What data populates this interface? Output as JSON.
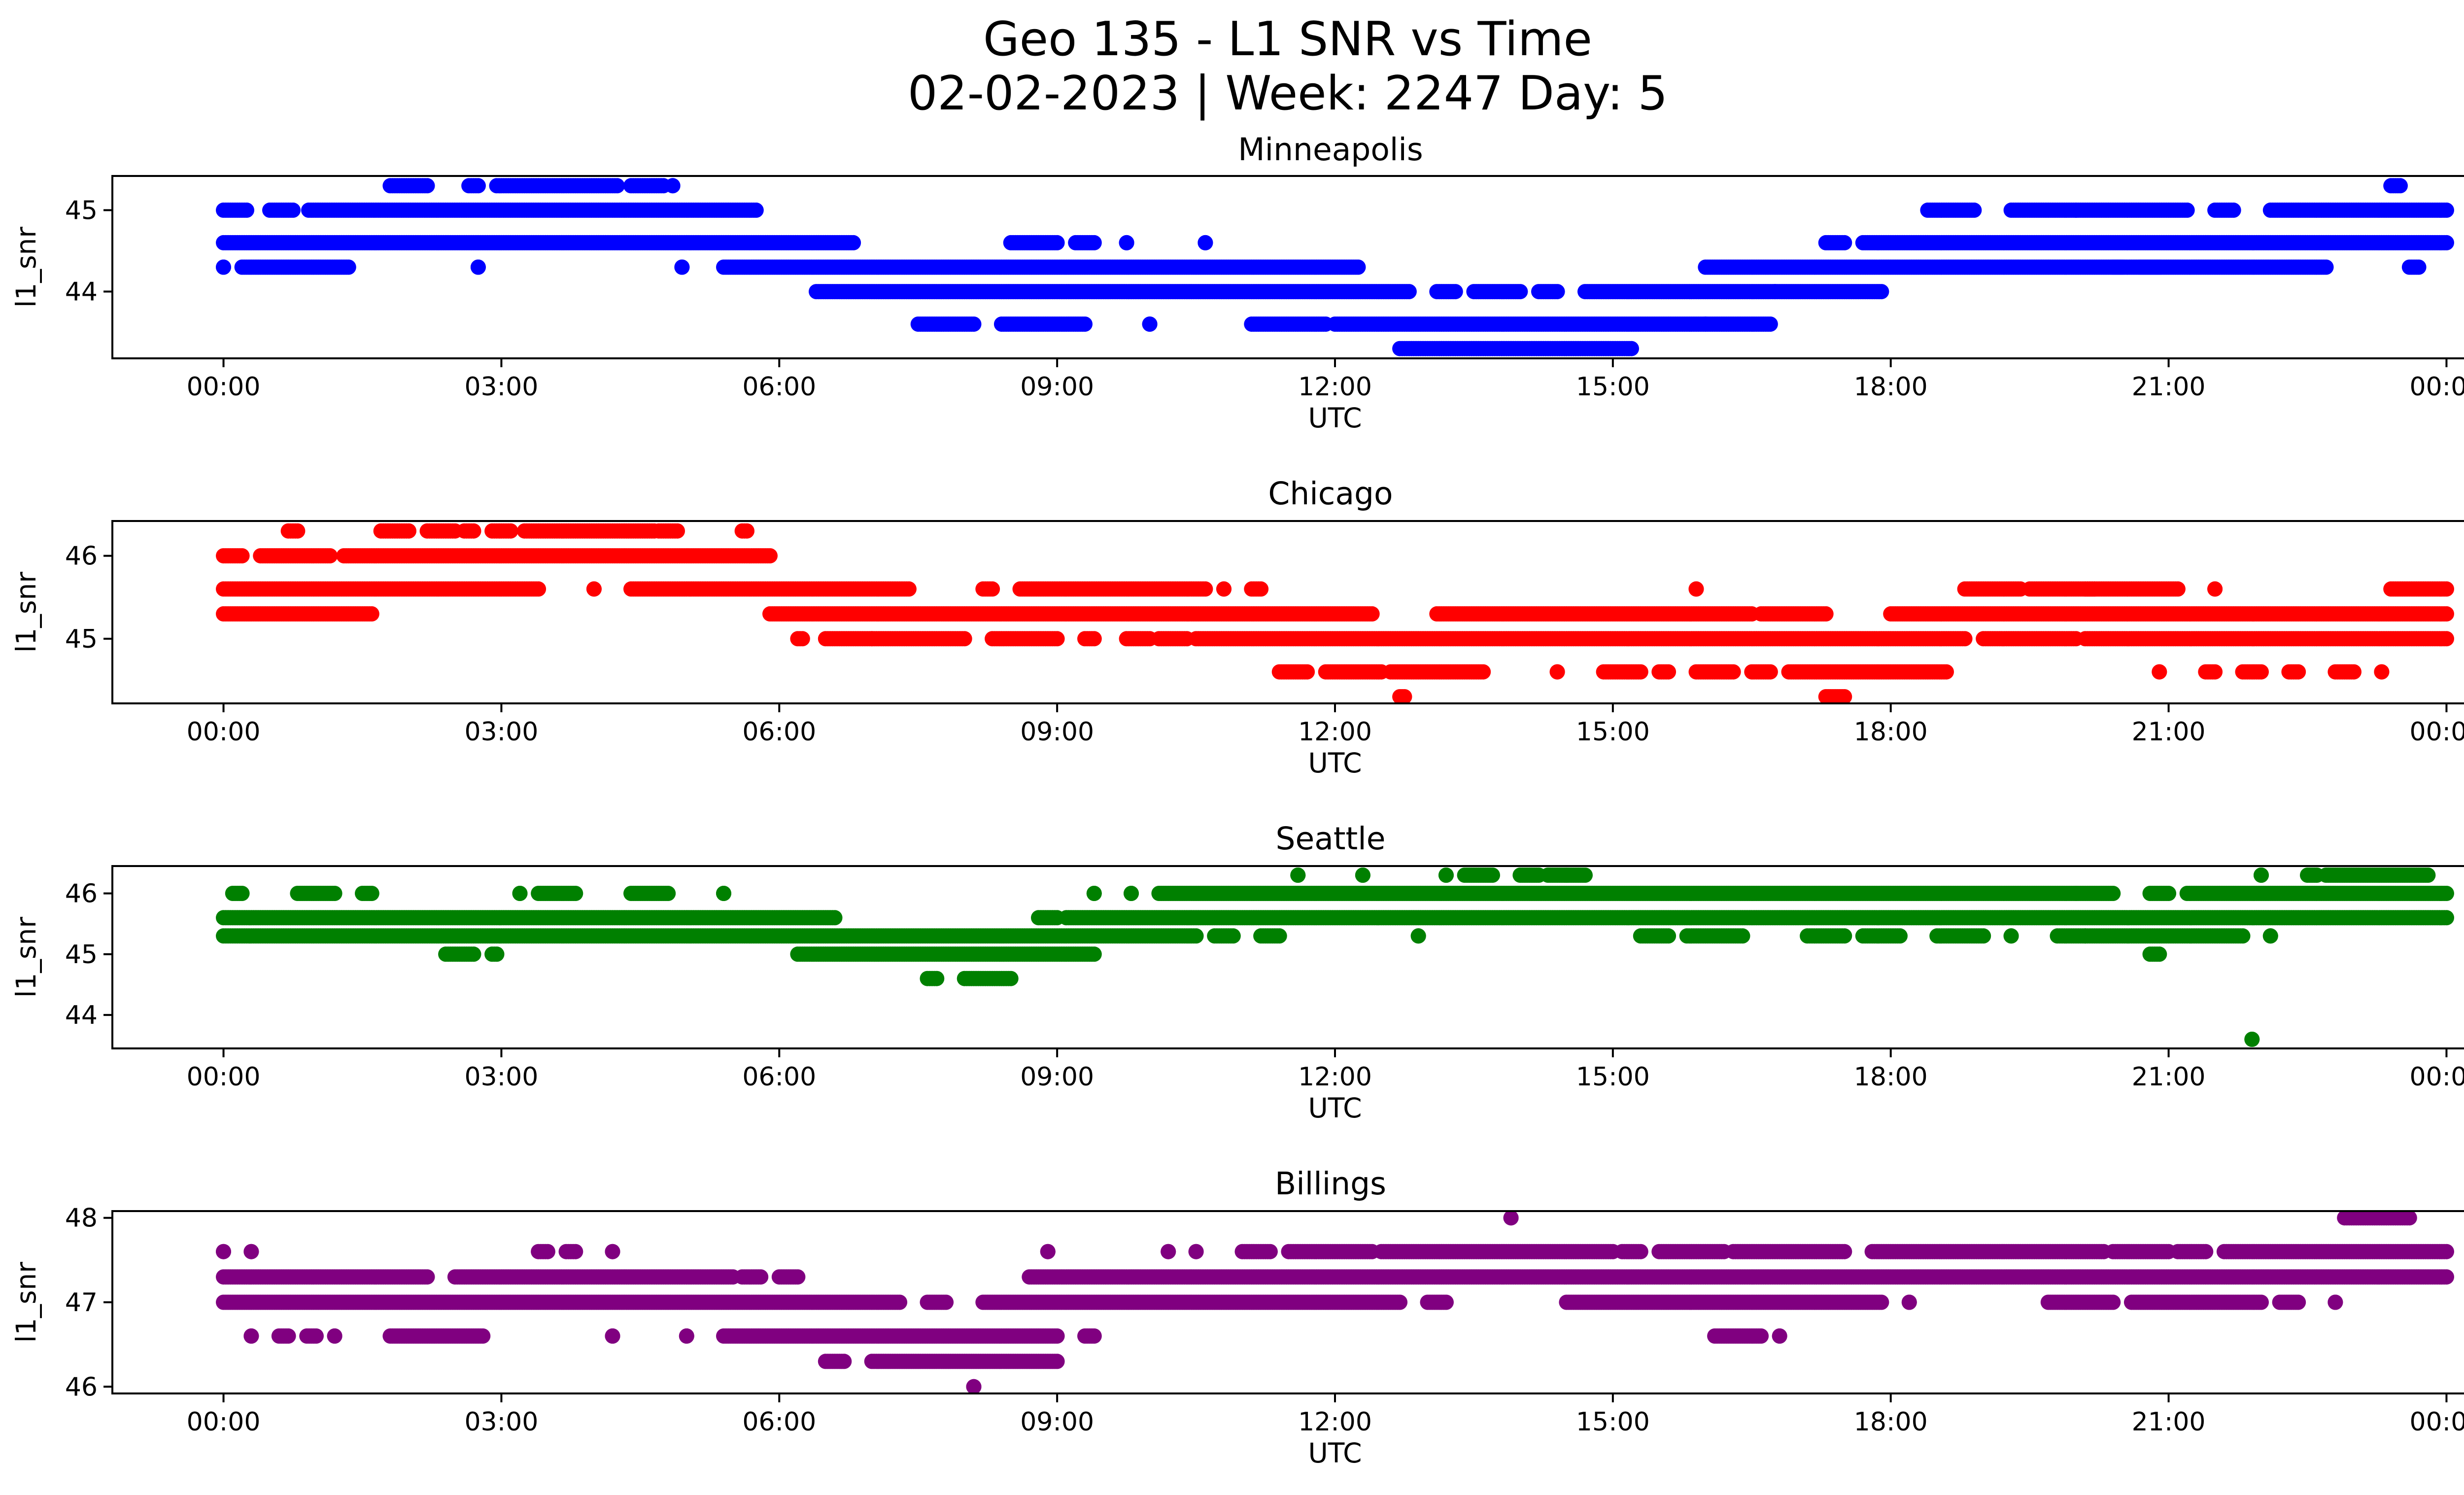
{
  "title_line1": "Geo 135 - L1 SNR vs Time",
  "title_line2": "02-02-2023 | Week: 2247 Day: 5",
  "x_tick_labels": [
    "00:00",
    "03:00",
    "06:00",
    "09:00",
    "12:00",
    "15:00",
    "18:00",
    "21:00",
    "00:00"
  ],
  "chart_data": [
    {
      "type": "scatter",
      "title": "Minneapolis",
      "xlabel": "UTC",
      "ylabel": "l1_snr",
      "color": "#0000ff",
      "xlim": [
        -1.2,
        25.2
      ],
      "ylim": [
        43.18,
        45.42
      ],
      "yticks": [
        44,
        45
      ],
      "bands": [
        {
          "y": 45.0,
          "segments": [
            [
              0.0,
              0.25
            ],
            [
              0.5,
              0.75
            ],
            [
              0.92,
              5.75
            ],
            [
              18.4,
              18.9
            ],
            [
              19.3,
              20.0
            ],
            [
              20.0,
              21.2
            ],
            [
              21.5,
              21.7
            ],
            [
              22.1,
              24.0
            ]
          ]
        },
        {
          "y": 44.6,
          "segments": [
            [
              0.0,
              6.8
            ],
            [
              8.5,
              9.0
            ],
            [
              9.2,
              9.4
            ],
            [
              9.75,
              9.75
            ],
            [
              10.6,
              10.6
            ],
            [
              17.3,
              17.5
            ],
            [
              17.7,
              24.0
            ]
          ]
        },
        {
          "y": 44.3,
          "segments": [
            [
              0.0,
              0.0
            ],
            [
              0.2,
              1.35
            ],
            [
              2.75,
              2.75
            ],
            [
              4.95,
              4.95
            ],
            [
              5.4,
              12.25
            ],
            [
              16.0,
              20.5
            ],
            [
              20.7,
              20.9
            ],
            [
              20.4,
              22.7
            ]
          ]
        },
        {
          "y": 44.0,
          "segments": [
            [
              6.4,
              12.8
            ],
            [
              13.1,
              13.3
            ],
            [
              13.5,
              14.0
            ],
            [
              14.2,
              14.4
            ],
            [
              14.7,
              16.75
            ],
            [
              16.75,
              17.9
            ]
          ]
        },
        {
          "y": 43.6,
          "segments": [
            [
              7.5,
              8.1
            ],
            [
              8.4,
              9.3
            ],
            [
              10.0,
              10.0
            ],
            [
              11.1,
              11.9
            ],
            [
              12.0,
              16.0
            ],
            [
              16.0,
              16.7
            ]
          ]
        },
        {
          "y": 43.3,
          "segments": [
            [
              12.7,
              15.2
            ]
          ]
        },
        {
          "y": 45.3,
          "segments": [
            [
              1.8,
              2.2
            ],
            [
              2.65,
              2.75
            ],
            [
              2.95,
              4.25
            ],
            [
              4.4,
              4.75
            ],
            [
              4.85,
              4.85
            ],
            [
              23.4,
              23.5
            ]
          ]
        },
        {
          "y": 44.3,
          "segments": [
            [
              23.6,
              23.7
            ]
          ]
        }
      ]
    },
    {
      "type": "scatter",
      "title": "Chicago",
      "xlabel": "UTC",
      "ylabel": "l1_snr",
      "color": "#ff0000",
      "xlim": [
        -1.2,
        25.2
      ],
      "ylim": [
        44.22,
        46.42
      ],
      "yticks": [
        45,
        46
      ],
      "bands": [
        {
          "y": 46.3,
          "segments": [
            [
              0.7,
              0.8
            ],
            [
              1.7,
              2.0
            ],
            [
              2.2,
              2.5
            ],
            [
              2.6,
              2.7
            ],
            [
              2.9,
              3.1
            ],
            [
              3.25,
              4.65
            ],
            [
              4.7,
              4.9
            ],
            [
              5.6,
              5.65
            ]
          ]
        },
        {
          "y": 46.0,
          "segments": [
            [
              0.0,
              0.2
            ],
            [
              0.4,
              1.15
            ],
            [
              1.3,
              5.9
            ]
          ]
        },
        {
          "y": 45.6,
          "segments": [
            [
              0.0,
              3.4
            ],
            [
              4.0,
              4.0
            ],
            [
              4.4,
              7.4
            ],
            [
              8.2,
              8.3
            ],
            [
              8.6,
              10.6
            ],
            [
              10.8,
              10.8
            ],
            [
              11.1,
              11.2
            ],
            [
              15.9,
              15.9
            ],
            [
              18.8,
              19.4
            ],
            [
              19.5,
              20.2
            ],
            [
              20.1,
              21.1
            ],
            [
              21.5,
              21.5
            ],
            [
              23.4,
              24.0
            ]
          ]
        },
        {
          "y": 45.3,
          "segments": [
            [
              0.0,
              1.6
            ],
            [
              5.9,
              12.4
            ],
            [
              13.1,
              16.5
            ],
            [
              16.6,
              17.3
            ],
            [
              18.0,
              24.0
            ]
          ]
        },
        {
          "y": 45.0,
          "segments": [
            [
              6.2,
              6.25
            ],
            [
              6.5,
              7.0
            ],
            [
              7.0,
              8.0
            ],
            [
              8.3,
              9.0
            ],
            [
              9.3,
              9.4
            ],
            [
              9.75,
              10.0
            ],
            [
              10.1,
              10.4
            ],
            [
              10.5,
              18.8
            ],
            [
              19.0,
              20.0
            ],
            [
              20.1,
              24.0
            ]
          ]
        },
        {
          "y": 44.6,
          "segments": [
            [
              11.4,
              11.7
            ],
            [
              11.9,
              12.5
            ],
            [
              12.6,
              13.6
            ],
            [
              14.4,
              14.4
            ],
            [
              14.9,
              15.3
            ],
            [
              15.5,
              15.6
            ],
            [
              15.9,
              16.3
            ],
            [
              16.5,
              16.7
            ],
            [
              16.9,
              18.6
            ],
            [
              20.9,
              20.9
            ],
            [
              21.4,
              21.5
            ],
            [
              21.8,
              22.0
            ],
            [
              22.3,
              22.4
            ],
            [
              22.8,
              23.0
            ],
            [
              23.3,
              23.3
            ]
          ]
        },
        {
          "y": 44.3,
          "segments": [
            [
              12.7,
              12.75
            ],
            [
              17.3,
              17.5
            ]
          ]
        }
      ]
    },
    {
      "type": "scatter",
      "title": "Seattle",
      "xlabel": "UTC",
      "ylabel": "l1_snr",
      "color": "#008000",
      "xlim": [
        -1.2,
        25.2
      ],
      "ylim": [
        43.45,
        46.45
      ],
      "yticks": [
        44,
        45,
        46
      ],
      "bands": [
        {
          "y": 46.3,
          "segments": [
            [
              11.6,
              11.6
            ],
            [
              12.3,
              12.3
            ],
            [
              13.2,
              13.2
            ],
            [
              13.4,
              13.7
            ],
            [
              14.0,
              14.2
            ],
            [
              14.3,
              14.5
            ],
            [
              14.5,
              14.7
            ],
            [
              22.0,
              22.0
            ],
            [
              22.5,
              22.6
            ],
            [
              22.7,
              23.8
            ]
          ]
        },
        {
          "y": 46.0,
          "segments": [
            [
              0.1,
              0.2
            ],
            [
              0.8,
              1.2
            ],
            [
              1.5,
              1.6
            ],
            [
              3.2,
              3.2
            ],
            [
              3.4,
              3.8
            ],
            [
              4.4,
              4.8
            ],
            [
              5.4,
              5.4
            ],
            [
              9.4,
              9.4
            ],
            [
              9.8,
              9.8
            ],
            [
              10.1,
              20.0
            ],
            [
              20.0,
              20.4
            ],
            [
              20.8,
              21.0
            ],
            [
              21.2,
              24.0
            ]
          ]
        },
        {
          "y": 45.6,
          "segments": [
            [
              0.0,
              6.6
            ],
            [
              8.8,
              9.0
            ],
            [
              9.1,
              24.0
            ]
          ]
        },
        {
          "y": 45.3,
          "segments": [
            [
              0.0,
              10.5
            ],
            [
              10.7,
              10.9
            ],
            [
              11.2,
              11.4
            ],
            [
              12.9,
              12.9
            ],
            [
              15.3,
              15.6
            ],
            [
              15.8,
              16.4
            ],
            [
              17.1,
              17.5
            ],
            [
              17.7,
              18.1
            ],
            [
              18.5,
              19.0
            ],
            [
              19.3,
              19.3
            ],
            [
              19.8,
              20.1
            ],
            [
              20.1,
              21.8
            ],
            [
              22.1,
              22.1
            ]
          ]
        },
        {
          "y": 45.0,
          "segments": [
            [
              2.4,
              2.7
            ],
            [
              2.9,
              2.95
            ],
            [
              6.2,
              9.4
            ],
            [
              20.8,
              20.9
            ]
          ]
        },
        {
          "y": 44.6,
          "segments": [
            [
              7.6,
              7.7
            ],
            [
              8.0,
              8.5
            ]
          ]
        },
        {
          "y": 43.6,
          "segments": [
            [
              21.9,
              21.9
            ]
          ]
        }
      ]
    },
    {
      "type": "scatter",
      "title": "Billings",
      "xlabel": "UTC",
      "ylabel": "l1_snr",
      "color": "#800080",
      "xlim": [
        -1.2,
        25.2
      ],
      "ylim": [
        45.92,
        48.08
      ],
      "yticks": [
        46,
        47,
        48
      ],
      "bands": [
        {
          "y": 48.0,
          "segments": [
            [
              13.9,
              13.9
            ],
            [
              22.9,
              23.6
            ]
          ]
        },
        {
          "y": 47.6,
          "segments": [
            [
              0.0,
              0.0
            ],
            [
              0.3,
              0.3
            ],
            [
              3.4,
              3.5
            ],
            [
              3.7,
              3.8
            ],
            [
              4.2,
              4.2
            ],
            [
              8.9,
              8.9
            ],
            [
              10.2,
              10.2
            ],
            [
              10.5,
              10.5
            ],
            [
              11.0,
              11.3
            ],
            [
              11.5,
              12.4
            ],
            [
              12.5,
              15.0
            ],
            [
              15.1,
              15.3
            ],
            [
              15.5,
              16.2
            ],
            [
              16.3,
              17.5
            ],
            [
              17.8,
              20.3
            ],
            [
              20.4,
              21.0
            ],
            [
              21.1,
              21.4
            ],
            [
              21.6,
              24.0
            ]
          ]
        },
        {
          "y": 47.3,
          "segments": [
            [
              0.0,
              2.2
            ],
            [
              2.5,
              5.5
            ],
            [
              5.6,
              5.8
            ],
            [
              6.0,
              6.2
            ],
            [
              8.7,
              24.0
            ]
          ]
        },
        {
          "y": 47.0,
          "segments": [
            [
              0.0,
              7.3
            ],
            [
              7.6,
              7.8
            ],
            [
              8.2,
              12.7
            ],
            [
              13.0,
              13.2
            ],
            [
              14.5,
              17.9
            ],
            [
              18.2,
              18.2
            ],
            [
              19.7,
              20.4
            ],
            [
              20.6,
              22.0
            ],
            [
              22.2,
              22.4
            ],
            [
              22.8,
              22.8
            ]
          ]
        },
        {
          "y": 46.6,
          "segments": [
            [
              0.3,
              0.3
            ],
            [
              0.6,
              0.7
            ],
            [
              0.9,
              1.0
            ],
            [
              1.2,
              1.2
            ],
            [
              1.8,
              2.8
            ],
            [
              4.2,
              4.2
            ],
            [
              5.0,
              5.0
            ],
            [
              5.4,
              9.0
            ],
            [
              9.3,
              9.4
            ],
            [
              16.1,
              16.6
            ],
            [
              16.8,
              16.8
            ]
          ]
        },
        {
          "y": 46.3,
          "segments": [
            [
              6.5,
              6.7
            ],
            [
              7.0,
              9.0
            ]
          ]
        },
        {
          "y": 46.0,
          "segments": [
            [
              8.1,
              8.1
            ]
          ]
        }
      ]
    }
  ]
}
